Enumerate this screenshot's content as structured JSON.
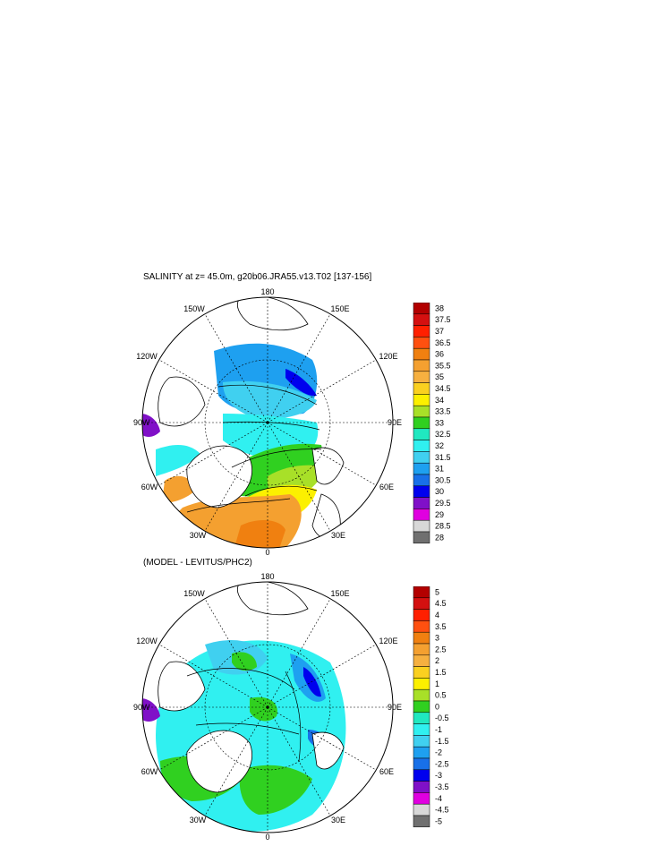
{
  "panels": [
    {
      "title": "SALINITY at z=  45.0m, g20b06.JRA55.v13.T02 [137-156]",
      "lon_labels": [
        "180",
        "150E",
        "120E",
        "90E",
        "60E",
        "30E",
        "0",
        "30W",
        "60W",
        "90W",
        "120W",
        "150W"
      ],
      "colorbar": {
        "labels": [
          "38",
          "37.5",
          "37",
          "36.5",
          "36",
          "35.5",
          "35",
          "34.5",
          "34",
          "33.5",
          "33",
          "32.5",
          "32",
          "31.5",
          "31",
          "30.5",
          "30",
          "29.5",
          "29",
          "28.5",
          "28"
        ]
      }
    },
    {
      "title": "(MODEL - LEVITUS/PHC2)",
      "lon_labels": [
        "180",
        "150E",
        "120E",
        "90E",
        "60E",
        "30E",
        "0",
        "30W",
        "60W",
        "90W",
        "120W",
        "150W"
      ],
      "colorbar": {
        "labels": [
          "5",
          "4.5",
          "4",
          "3.5",
          "3",
          "2.5",
          "2",
          "1.5",
          "1",
          "0.5",
          "0",
          "-0.5",
          "-1",
          "-1.5",
          "-2",
          "-2.5",
          "-3",
          "-3.5",
          "-4",
          "-4.5",
          "-5"
        ]
      }
    }
  ],
  "colors": {
    "scale": [
      "#b30000",
      "#d41010",
      "#ff2000",
      "#ff5010",
      "#f08010",
      "#f4a030",
      "#f6b040",
      "#fad020",
      "#fcf000",
      "#a8e028",
      "#30d020",
      "#20e8c0",
      "#30f0f0",
      "#40d0f0",
      "#1ea0f0",
      "#1870e8",
      "#0000ee",
      "#8010c8",
      "#e000e0",
      "#d8d8d8",
      "#707070"
    ],
    "land": "#ffffff",
    "coast": "#000000"
  }
}
